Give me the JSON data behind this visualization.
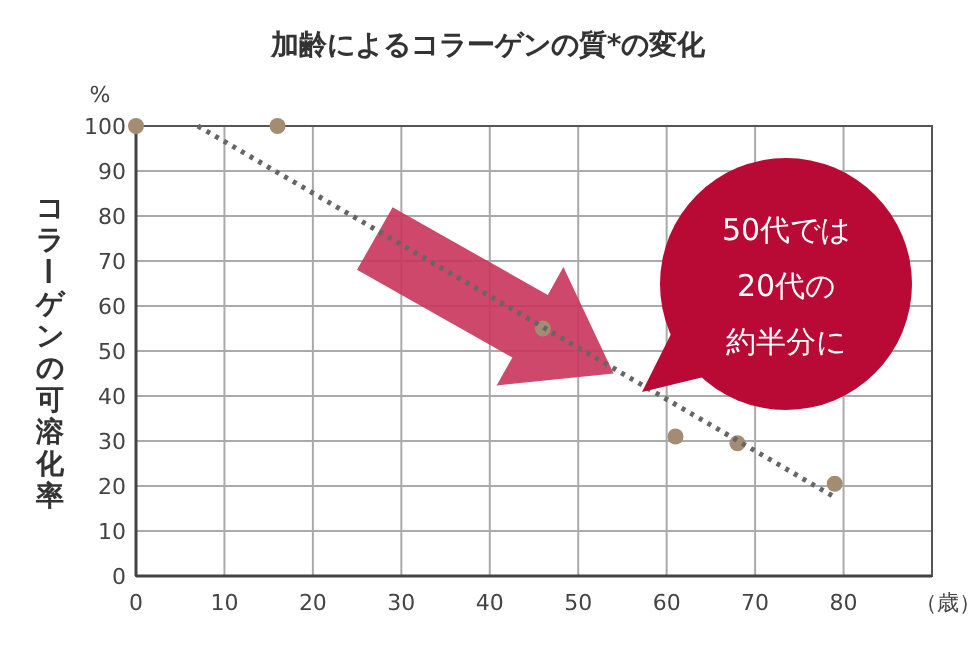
{
  "chart_data": {
    "type": "scatter",
    "title": "加齢によるコラーゲンの質*の変化",
    "xlabel": "（歳）",
    "ylabel": "コラーゲンの可溶化率",
    "annotations": [
      "%",
      "50代では",
      "20代の",
      "約半分に"
    ],
    "xlim": [
      0,
      90
    ],
    "ylim": [
      0,
      100
    ],
    "xticks": [
      0,
      10,
      20,
      30,
      40,
      50,
      60,
      70,
      80
    ],
    "yticks": [
      0,
      10,
      20,
      30,
      40,
      50,
      60,
      70,
      80,
      90,
      100
    ],
    "grid": true,
    "series": [
      {
        "type": "scatter",
        "color": "#a38c72",
        "marker": "circle",
        "x": [
          0,
          16,
          46,
          61,
          68,
          79
        ],
        "values": [
          100,
          100,
          55,
          31,
          29.5,
          20.5
        ]
      },
      {
        "type": "line",
        "color": "#666666",
        "marker": "none",
        "line_style": "dotted",
        "x": [
          7,
          79
        ],
        "values": [
          100,
          17.5
        ]
      }
    ]
  }
}
